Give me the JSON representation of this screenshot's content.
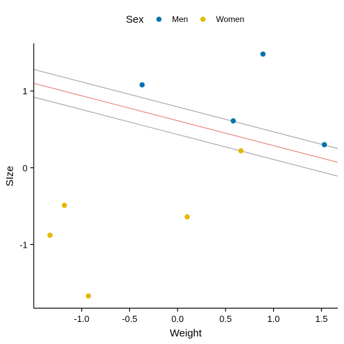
{
  "chart_data": {
    "type": "scatter",
    "xlabel": "Weight",
    "ylabel": "SIze",
    "xlim": [
      -1.5,
      1.67
    ],
    "ylim": [
      -1.83,
      1.62
    ],
    "x_ticks": [
      {
        "value": -1.0,
        "label": "-1.0"
      },
      {
        "value": -0.5,
        "label": "-0.5"
      },
      {
        "value": 0.0,
        "label": "0.0"
      },
      {
        "value": 0.5,
        "label": "0.5"
      },
      {
        "value": 1.0,
        "label": "1.0"
      },
      {
        "value": 1.5,
        "label": "1.5"
      }
    ],
    "y_ticks": [
      {
        "value": -1,
        "label": "-1"
      },
      {
        "value": 0,
        "label": "0"
      },
      {
        "value": 1,
        "label": "1"
      }
    ],
    "grid": false,
    "legend": {
      "title": "Sex",
      "position": "top",
      "entries": [
        {
          "label": "Men",
          "color": "#0072B2"
        },
        {
          "label": "Women",
          "color": "#E7B800"
        }
      ]
    },
    "series": [
      {
        "name": "Men",
        "color": "#0072B2",
        "points": [
          {
            "x": -0.37,
            "y": 1.08
          },
          {
            "x": 0.58,
            "y": 0.61
          },
          {
            "x": 0.89,
            "y": 1.48
          },
          {
            "x": 1.53,
            "y": 0.3
          }
        ]
      },
      {
        "name": "Women",
        "color": "#E7B800",
        "points": [
          {
            "x": -1.33,
            "y": -0.88
          },
          {
            "x": -1.18,
            "y": -0.49
          },
          {
            "x": -0.93,
            "y": -1.67
          },
          {
            "x": 0.1,
            "y": -0.64
          },
          {
            "x": 0.66,
            "y": 0.22
          }
        ]
      }
    ],
    "lines": [
      {
        "role": "fit",
        "color": "#E8857C",
        "y_at_xmin": 1.1,
        "y_at_xmax": 0.07
      },
      {
        "role": "upper-band",
        "color": "#AAAAAA",
        "y_at_xmin": 1.28,
        "y_at_xmax": 0.25
      },
      {
        "role": "lower-band",
        "color": "#AAAAAA",
        "y_at_xmin": 0.92,
        "y_at_xmax": -0.11
      }
    ]
  }
}
